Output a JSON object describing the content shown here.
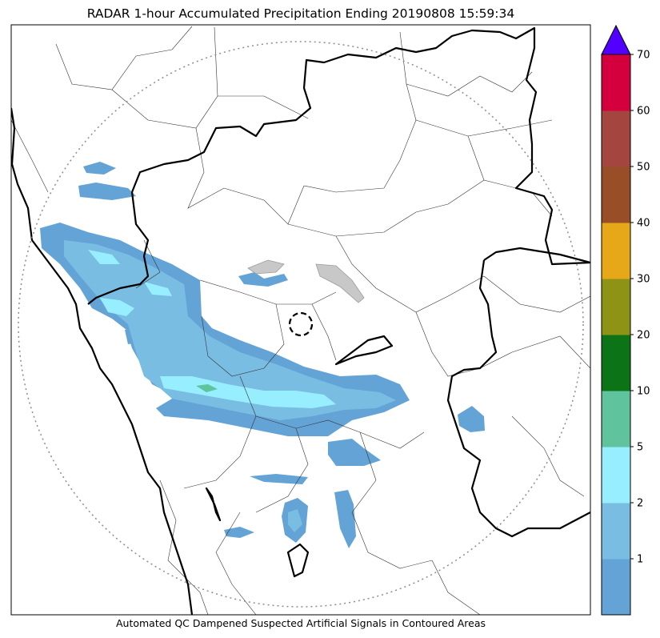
{
  "title": "RADAR 1-hour Accumulated Precipitation Ending 20190808 15:59:34",
  "footnote": "Automated QC Dampened Suspected Artificial Signals in Contoured Areas",
  "colorbar": {
    "levels": [
      "1",
      "2",
      "5",
      "10",
      "20",
      "30",
      "40",
      "50",
      "60",
      "70"
    ],
    "colors": [
      "#64a3d6",
      "#79bde2",
      "#96eefe",
      "#5fc49d",
      "#0d7317",
      "#8e9316",
      "#e6a719",
      "#984e26",
      "#a4453f",
      "#d4003e"
    ],
    "extend_color": "#5200ff"
  },
  "map": {
    "outline_color": "#000000",
    "range_ring_color": "#8c8c8c"
  }
}
